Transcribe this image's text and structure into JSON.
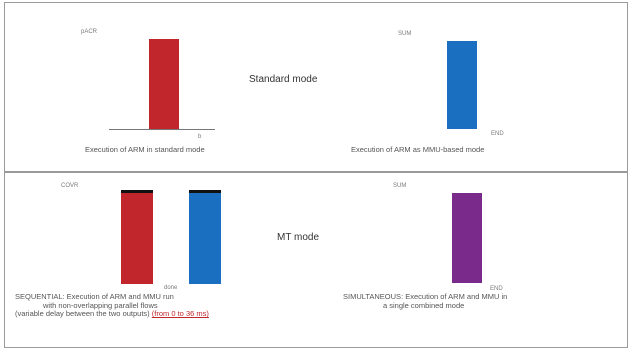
{
  "standard_mode": {
    "title": "Standard mode",
    "left": {
      "top_label": "pACR",
      "tick_label": "b",
      "caption": "Execution of ARM in standard mode",
      "bar_color": "#c0262c"
    },
    "right": {
      "top_label": "SUM",
      "tick_label": "END",
      "caption": "Execution of ARM as MMU-based mode",
      "bar_color": "#1a6fc0"
    }
  },
  "mt_mode": {
    "title": "MT mode",
    "left": {
      "top_label": "COVR",
      "tick_label": "done",
      "caption_lines": [
        "SEQUENTIAL: Execution of ARM and MMU run",
        "with non-overlapping parallel flows",
        "(variable delay between the two outputs)"
      ],
      "caption_emphasis": "(from 0 to 36 ms)",
      "bar_colors": [
        "#c0262c",
        "#1a6fc0"
      ]
    },
    "right": {
      "top_label": "SUM",
      "tick_label": "END",
      "caption_lines": [
        "SIMULTANEOUS: Execution of ARM and MMU in",
        "a single combined mode"
      ],
      "bar_color": "#7a2a8a"
    }
  }
}
